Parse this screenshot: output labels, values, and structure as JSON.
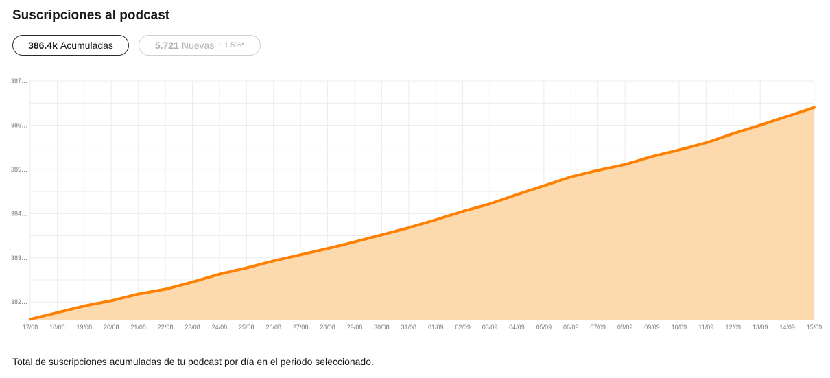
{
  "header": {
    "title": "Suscripciones al podcast"
  },
  "pills": {
    "accumulated": {
      "value": "386.4k",
      "label": "Acumuladas"
    },
    "new": {
      "value": "5.721",
      "label": "Nuevas",
      "arrow": "↑",
      "pct": "1.5%*"
    }
  },
  "colors": {
    "line": "#ff7f00",
    "area": "#fdd9ae",
    "grid": "#ececec",
    "up": "#2bb673"
  },
  "chart_data": {
    "type": "area",
    "x": [
      "17/08",
      "18/08",
      "19/08",
      "20/08",
      "21/08",
      "22/08",
      "23/08",
      "24/08",
      "25/08",
      "26/08",
      "27/08",
      "28/08",
      "29/08",
      "30/08",
      "31/08",
      "01/09",
      "02/09",
      "03/09",
      "04/09",
      "05/09",
      "06/09",
      "07/09",
      "08/09",
      "09/09",
      "10/09",
      "11/09",
      "12/09",
      "13/09",
      "14/09",
      "15/09"
    ],
    "y_tick_labels": [
      "387…",
      "386…",
      "385…",
      "384…",
      "383…",
      "382…"
    ],
    "y_ticks": [
      387,
      386,
      385,
      384,
      383,
      382
    ],
    "ylim": [
      381.6,
      387
    ],
    "series": [
      {
        "values": [
          381.61,
          381.76,
          381.91,
          382.03,
          382.18,
          382.29,
          382.45,
          382.63,
          382.77,
          382.93,
          383.07,
          383.21,
          383.36,
          383.52,
          383.68,
          383.86,
          384.05,
          384.22,
          384.43,
          384.63,
          384.83,
          384.98,
          385.11,
          385.29,
          385.44,
          385.6,
          385.81,
          386.0,
          386.2,
          386.4
        ]
      }
    ],
    "grid": true
  },
  "footer": {
    "caption": "Total de suscripciones acumuladas de tu podcast por día en el periodo seleccionado."
  }
}
